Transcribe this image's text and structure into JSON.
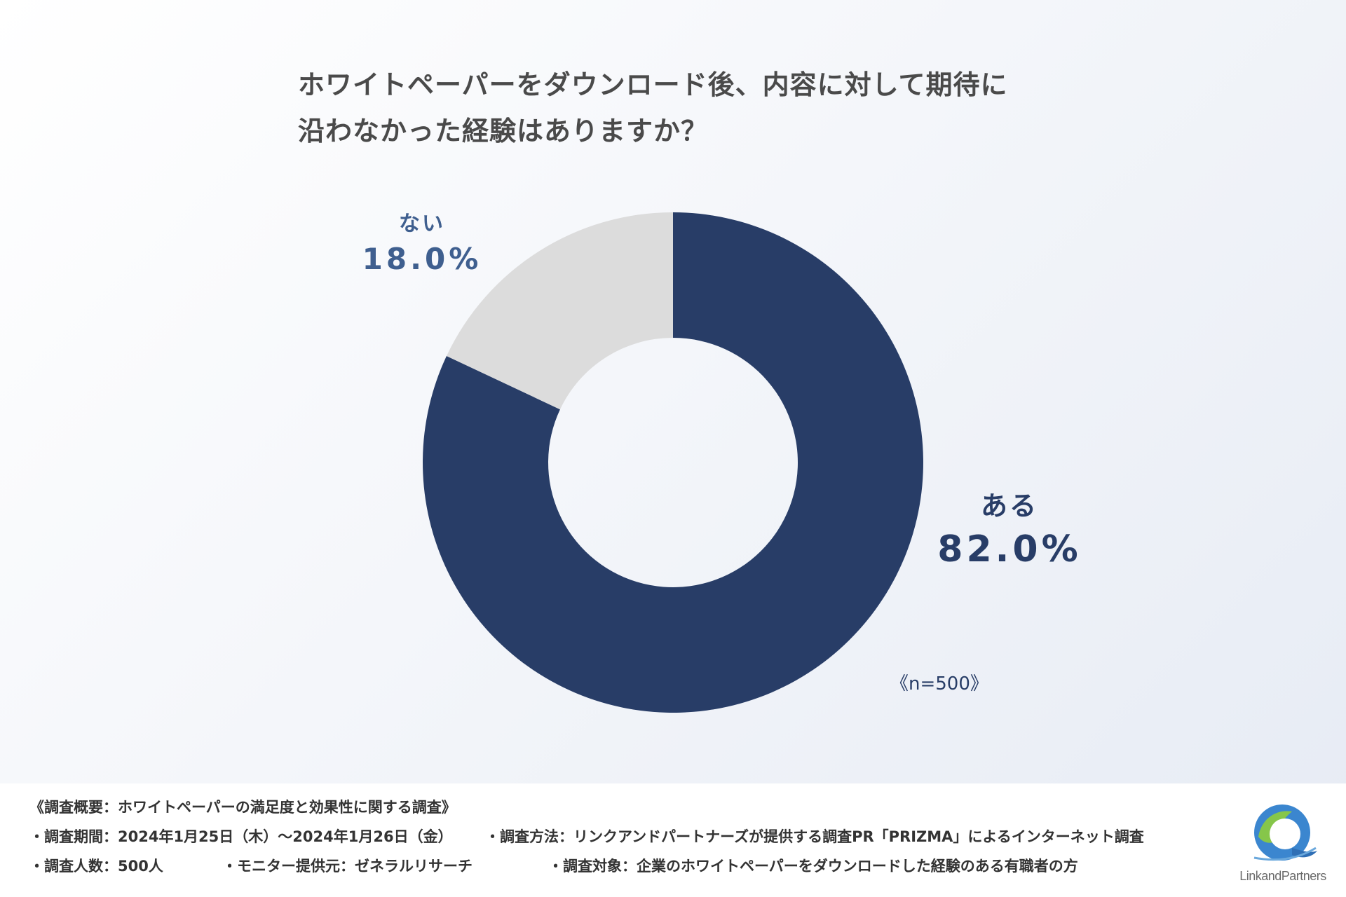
{
  "title": {
    "line1": "ホワイトペーパーをダウンロード後、内容に対して期待に",
    "line2": "沿わなかった経験はありますか？"
  },
  "chart_data": {
    "type": "pie",
    "categories": [
      "ある",
      "ない"
    ],
    "values": [
      82.0,
      18.0
    ],
    "value_labels": [
      "82.0%",
      "18.0%"
    ],
    "colors": [
      "#283d67",
      "#dcdcdc"
    ],
    "donut": true,
    "start": "12 o'clock, clockwise",
    "sample": "《n=500》"
  },
  "footer": {
    "overview": "《調査概要：ホワイトペーパーの満足度と効果性に関する調査》",
    "period": "・調査期間：2024年1月25日（木）～2024年1月26日（金）",
    "method": "・調査方法：リンクアンドパートナーズが提供する調査PR「PRIZMA」によるインターネット調査",
    "count": "・調査人数：500人",
    "monitor": "・モニター提供元：ゼネラルリサーチ",
    "target": "・調査対象：企業のホワイトペーパーをダウンロードした経験のある有職者の方"
  },
  "logo": {
    "text": "LinkandPartners",
    "colors": [
      "#4a8fd0",
      "#7fc24a",
      "#2f6fb5"
    ]
  }
}
